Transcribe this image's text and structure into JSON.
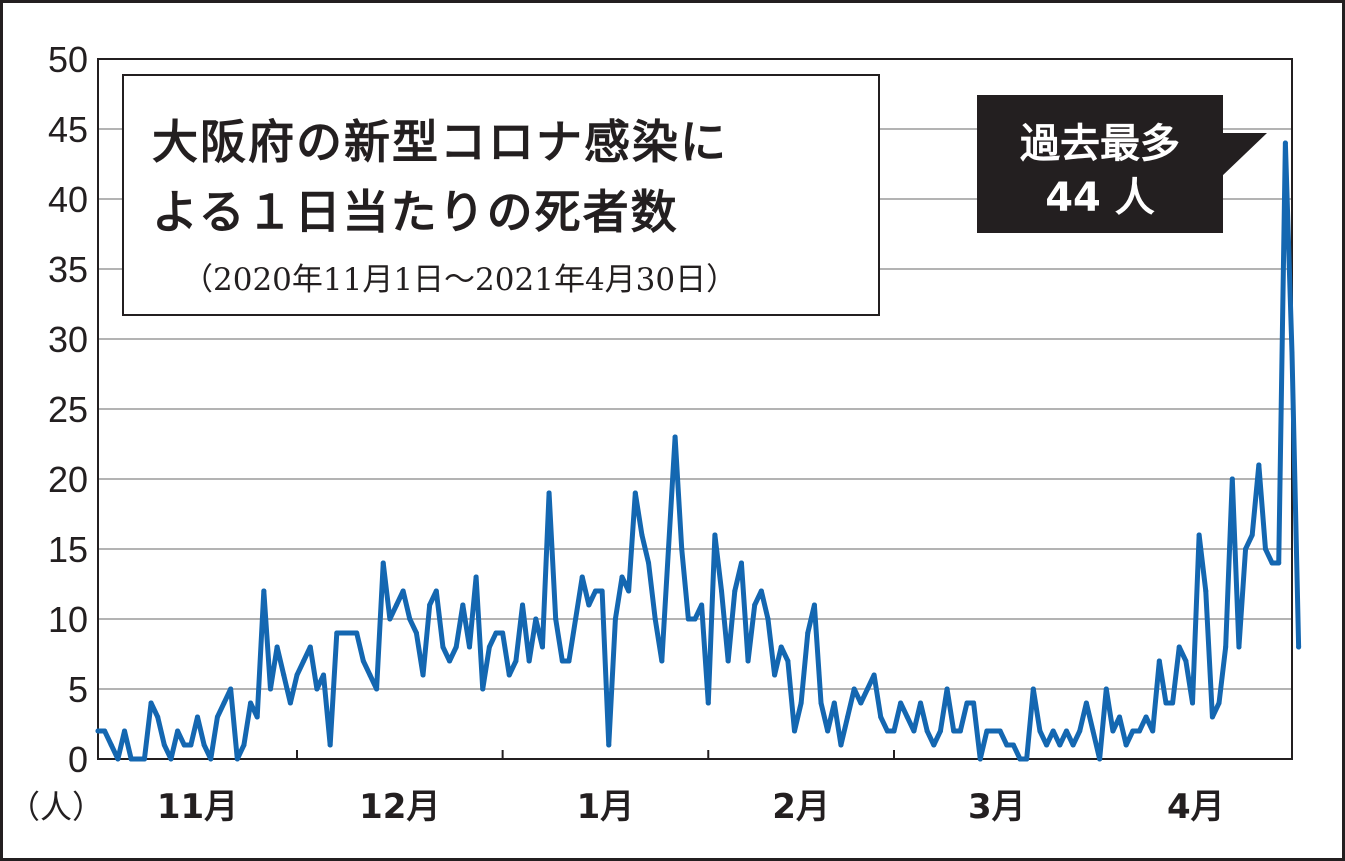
{
  "chart_data": {
    "type": "line",
    "title": "大阪府の新型コロナ感染による１日当たりの死者数",
    "title_line1": "大阪府の新型コロナ感染に",
    "title_line2": "よる１日当たりの死者数",
    "subtitle": "（2020年11月1日〜2021年4月30日）",
    "ylabel": "（人）",
    "ylim": [
      0,
      50
    ],
    "yticks": [
      "0",
      "5",
      "10",
      "15",
      "20",
      "25",
      "30",
      "35",
      "40",
      "45",
      "50"
    ],
    "month_labels": [
      "11月",
      "12月",
      "1月",
      "2月",
      "3月",
      "4月"
    ],
    "x_start": "2020-11-01",
    "x_end": "2021-04-30",
    "grid": true,
    "line_color": "#1467b1",
    "annotation": {
      "line1": "過去最多",
      "line2": "44 人"
    },
    "series": [
      {
        "values": [
          2,
          2,
          1,
          0,
          2,
          0,
          0,
          0,
          4,
          3,
          1,
          0,
          2,
          1,
          1,
          3,
          1,
          0,
          3,
          4,
          5,
          0,
          1,
          4,
          3,
          12,
          5,
          8,
          6,
          4,
          6,
          7,
          8,
          5,
          6,
          1,
          9,
          9,
          9,
          9,
          7,
          6,
          5,
          14,
          10,
          11,
          12,
          10,
          9,
          6,
          11,
          12,
          8,
          7,
          8,
          11,
          8,
          13,
          5,
          8,
          9,
          9,
          6,
          7,
          11,
          7,
          10,
          8,
          19,
          10,
          7,
          7,
          10,
          13,
          11,
          12,
          12,
          1,
          10,
          13,
          12,
          19,
          16,
          14,
          10,
          7,
          15,
          23,
          15,
          10,
          10,
          11,
          4,
          16,
          12,
          7,
          12,
          14,
          7,
          11,
          12,
          10,
          6,
          8,
          7,
          2,
          4,
          9,
          11,
          4,
          2,
          4,
          1,
          3,
          5,
          4,
          5,
          6,
          3,
          2,
          2,
          4,
          3,
          2,
          4,
          2,
          1,
          2,
          5,
          2,
          2,
          4,
          4,
          0,
          2,
          2,
          2,
          1,
          1,
          0,
          0,
          5,
          2,
          1,
          2,
          1,
          2,
          1,
          2,
          4,
          2,
          0,
          5,
          2,
          3,
          1,
          2,
          2,
          3,
          2,
          7,
          4,
          4,
          8,
          7,
          4,
          16,
          12,
          3,
          4,
          8,
          20,
          8,
          15,
          16,
          21,
          15,
          14,
          14,
          44,
          29,
          8
        ]
      }
    ]
  }
}
